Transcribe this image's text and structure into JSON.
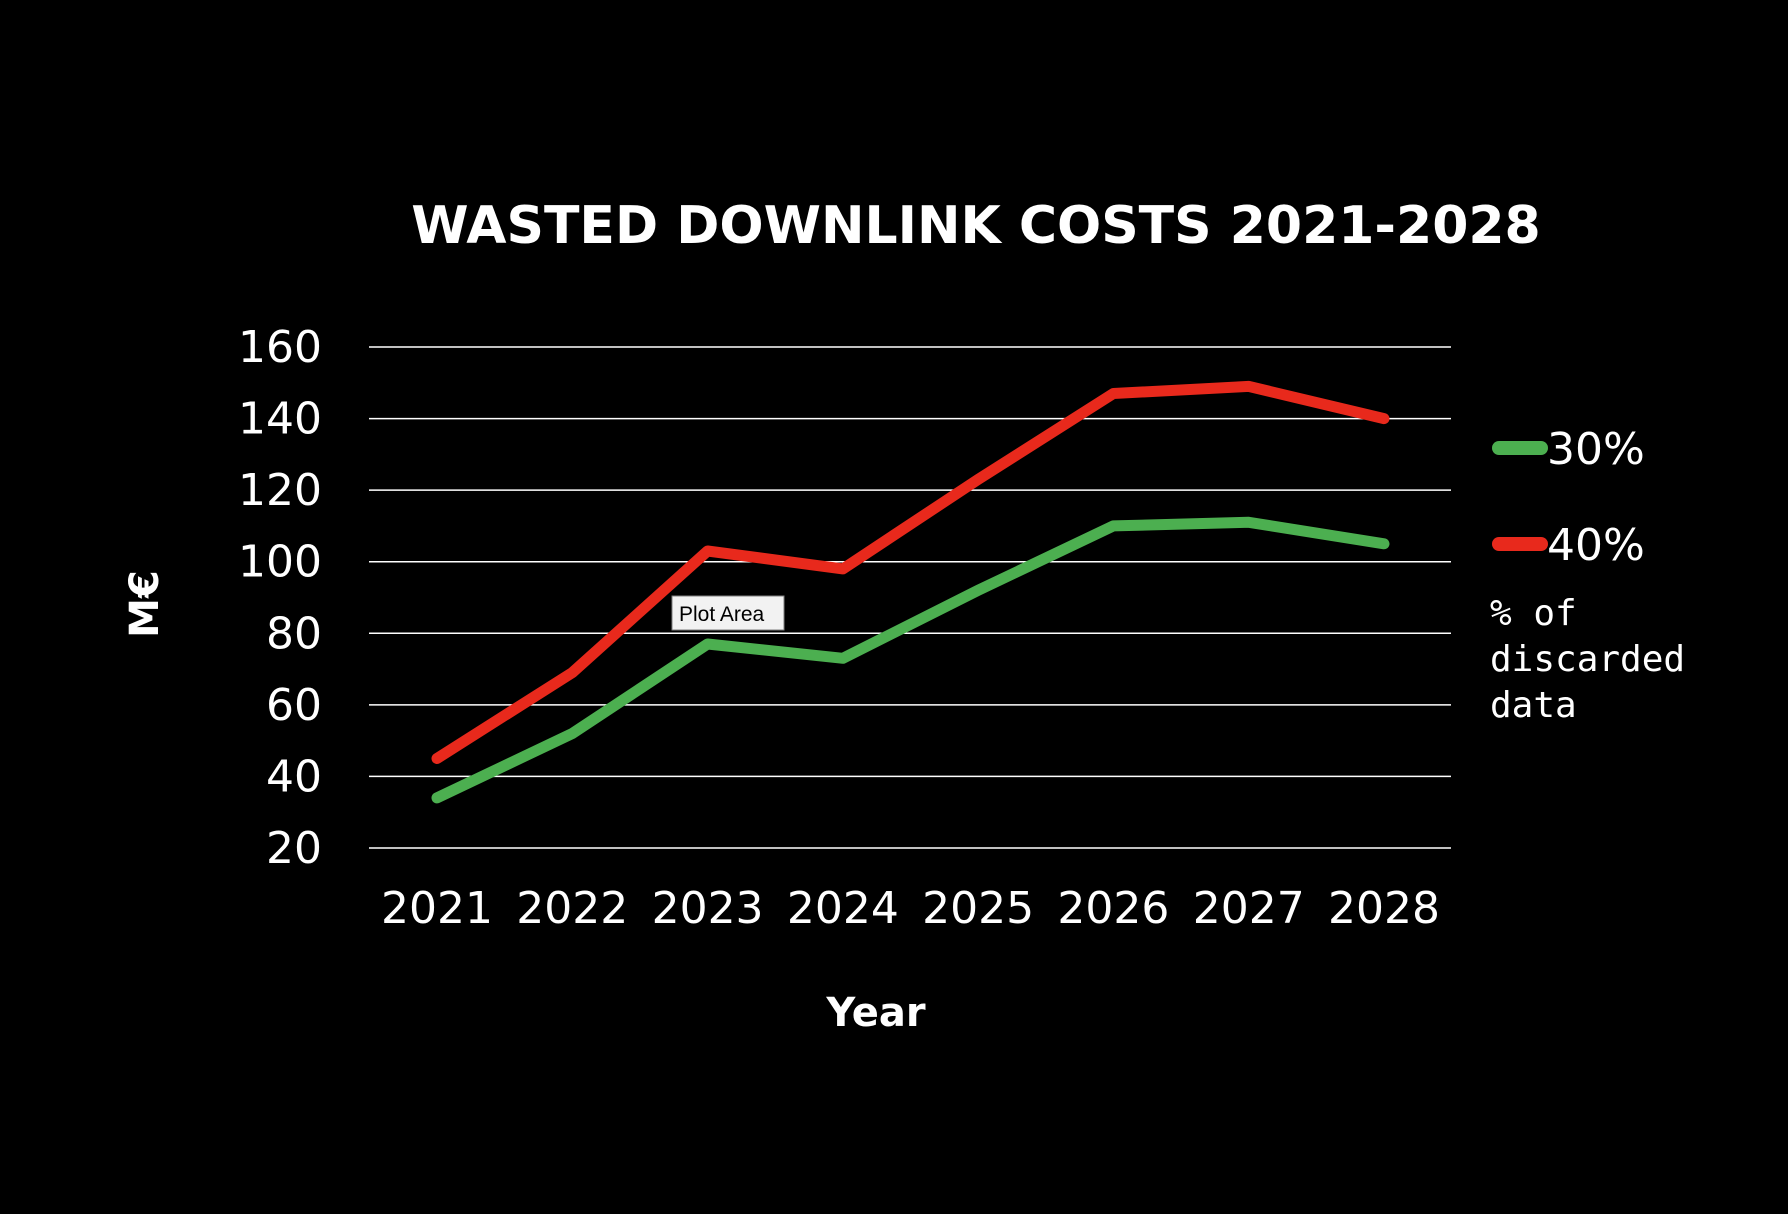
{
  "chart_data": {
    "type": "line",
    "title": "WASTED DOWNLINK COSTS 2021-2028",
    "xlabel": "Year",
    "ylabel": "M€",
    "categories": [
      "2021",
      "2022",
      "2023",
      "2024",
      "2025",
      "2026",
      "2027",
      "2028"
    ],
    "ylim": [
      20,
      160
    ],
    "yticks": [
      "20",
      "40",
      "60",
      "80",
      "100",
      "120",
      "140",
      "160"
    ],
    "grid": true,
    "legend_position": "right",
    "legend_title": "% of discarded data",
    "series": [
      {
        "name": "30%",
        "color": "#4caf50",
        "values": [
          34,
          52,
          77,
          73,
          92,
          110,
          111,
          105
        ]
      },
      {
        "name": "40%",
        "color": "#e8291c",
        "values": [
          45,
          69,
          103,
          98,
          123,
          147,
          149,
          140
        ]
      }
    ]
  },
  "tooltip": {
    "label": "Plot Area"
  },
  "colors": {
    "background": "#000000",
    "text": "#ffffff",
    "gridline": "#ffffff"
  }
}
